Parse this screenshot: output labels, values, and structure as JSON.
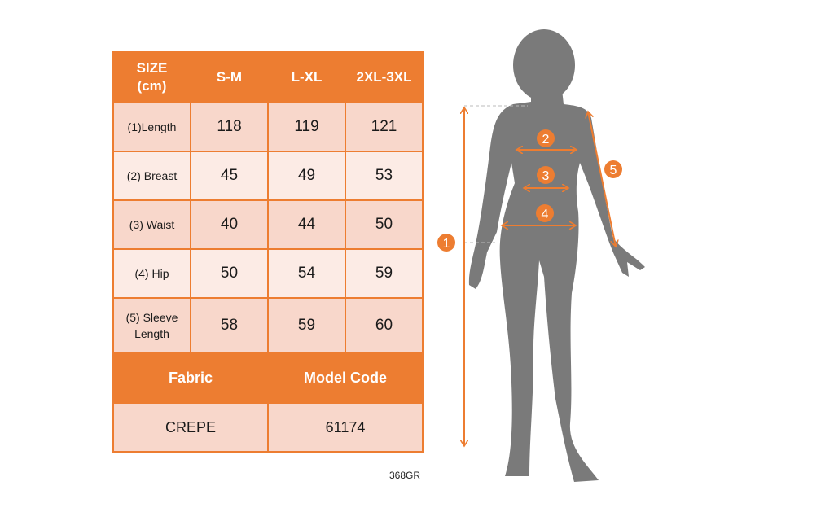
{
  "table": {
    "header": [
      "SIZE\n(cm)",
      "S-M",
      "L-XL",
      "2XL-3XL"
    ],
    "rows": [
      {
        "label": "(1)Length",
        "values": [
          "118",
          "119",
          "121"
        ]
      },
      {
        "label": "(2) Breast",
        "values": [
          "45",
          "49",
          "53"
        ]
      },
      {
        "label": "(3) Waist",
        "values": [
          "40",
          "44",
          "50"
        ]
      },
      {
        "label": "(4) Hip",
        "values": [
          "50",
          "54",
          "59"
        ]
      },
      {
        "label": "(5) Sleeve Length",
        "values": [
          "58",
          "59",
          "60"
        ]
      }
    ],
    "fabric_header": "Fabric",
    "model_header": "Model Code",
    "fabric_value": "CREPE",
    "model_value": "61174"
  },
  "product_code": "368GR",
  "figure": {
    "markers": [
      "1",
      "2",
      "3",
      "4",
      "5"
    ]
  },
  "colors": {
    "accent": "#ED7D31",
    "row_dark": "#F8D7CB",
    "row_light": "#FCEBE5",
    "silhouette": "#7a7a7a"
  }
}
